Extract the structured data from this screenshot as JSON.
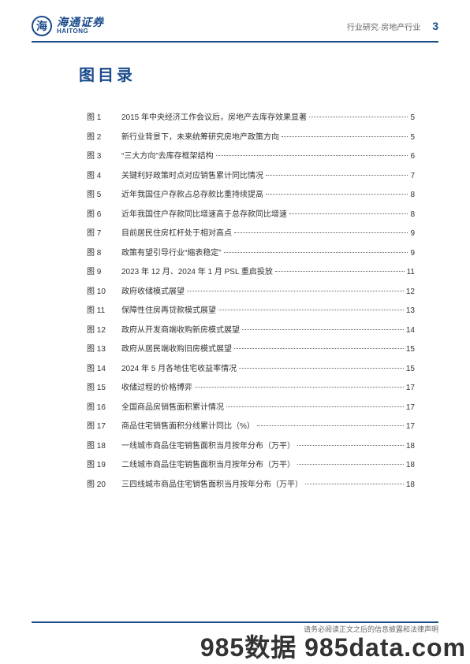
{
  "header": {
    "logo_cn": "海通证券",
    "logo_en": "HAITONG",
    "category": "行业研究·房地产行业",
    "page_number": "3"
  },
  "title": "图目录",
  "toc_items": [
    {
      "label": "图 1",
      "text": "2015 年中央经济工作会议后，房地产去库存效果显著",
      "page": "5"
    },
    {
      "label": "图 2",
      "text": "新行业背景下，未来统筹研究房地产政策方向",
      "page": "5"
    },
    {
      "label": "图 3",
      "text": "“三大方向”去库存框架结构",
      "page": "6"
    },
    {
      "label": "图 4",
      "text": "关键利好政策时点对应销售累计同比情况",
      "page": "7"
    },
    {
      "label": "图 5",
      "text": "近年我国住户存款占总存款比重持续提高",
      "page": "8"
    },
    {
      "label": "图 6",
      "text": "近年我国住户存款同比增速高于总存款同比增速",
      "page": "8"
    },
    {
      "label": "图 7",
      "text": "目前居民住房杠杆处于相对高点",
      "page": "9"
    },
    {
      "label": "图 8",
      "text": "政策有望引导行业“缩表稳定”",
      "page": "9"
    },
    {
      "label": "图 9",
      "text": "2023 年 12 月、2024 年 1 月 PSL 重启投放",
      "page": "11"
    },
    {
      "label": "图 10",
      "text": "政府收储模式展望",
      "page": "12"
    },
    {
      "label": "图 11",
      "text": "保障性住房再贷款模式展望",
      "page": "13"
    },
    {
      "label": "图 12",
      "text": "政府从开发商端收购新房模式展望",
      "page": "14"
    },
    {
      "label": "图 13",
      "text": "政府从居民端收购旧房模式展望",
      "page": "15"
    },
    {
      "label": "图 14",
      "text": "2024 年 5 月各地住宅收益率情况",
      "page": "15"
    },
    {
      "label": "图 15",
      "text": "收储过程的价格博弈",
      "page": "17"
    },
    {
      "label": "图 16",
      "text": "全国商品房销售面积累计情况",
      "page": "17"
    },
    {
      "label": "图 17",
      "text": "商品住宅销售面积分线累计同比（%）",
      "page": "17"
    },
    {
      "label": "图 18",
      "text": "一线城市商品住宅销售面积当月按年分布（万平）",
      "page": "18"
    },
    {
      "label": "图 19",
      "text": "二线城市商品住宅销售面积当月按年分布（万平）",
      "page": "18"
    },
    {
      "label": "图 20",
      "text": "三四线城市商品住宅销售面积当月按年分布（万平）",
      "page": "18"
    }
  ],
  "footer": {
    "disclaimer": "请务必阅读正文之后的信息披露和法律声明"
  },
  "watermark": "985数据 985data.com",
  "colors": {
    "primary": "#1a4b8c",
    "text": "#333333",
    "muted": "#666666"
  }
}
